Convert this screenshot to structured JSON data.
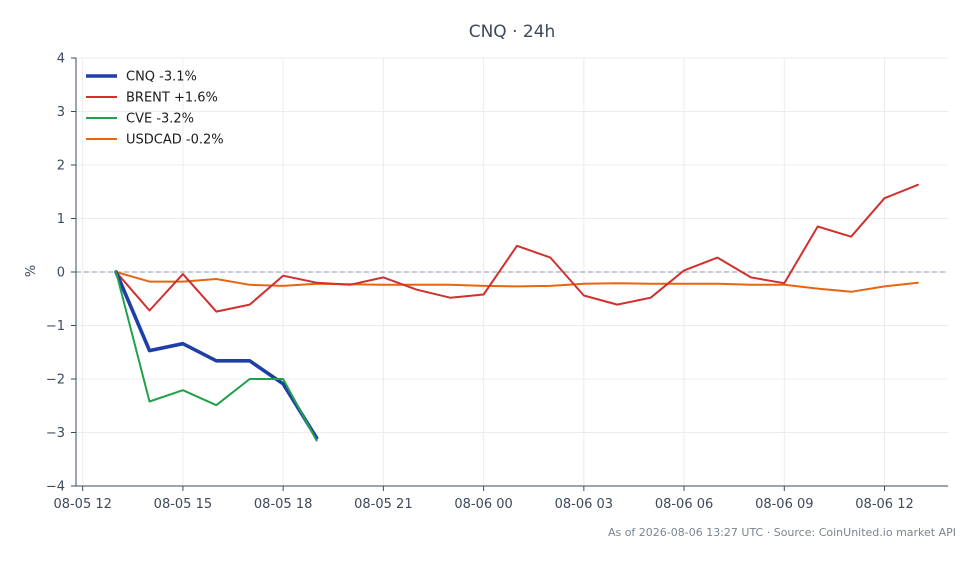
{
  "chart_data": {
    "type": "line",
    "title": "CNQ · 24h",
    "ylabel": "%",
    "xlabel": "",
    "ylim": [
      -4,
      4
    ],
    "yticks": [
      "4",
      "3",
      "2",
      "1",
      "0",
      "−1",
      "−2",
      "−3",
      "−4"
    ],
    "ytick_values": [
      4,
      3,
      2,
      1,
      0,
      -1,
      -2,
      -3,
      -4
    ],
    "xlim": [
      11.8,
      37.9
    ],
    "xticks": [
      "08-05 12",
      "08-05 15",
      "08-05 18",
      "08-05 21",
      "08-06 00",
      "08-06 03",
      "08-06 06",
      "08-06 09",
      "08-06 12"
    ],
    "xtick_values": [
      12,
      15,
      18,
      21,
      24,
      27,
      30,
      33,
      36
    ],
    "grid": true,
    "zero_line": true,
    "legend_position": "top-left",
    "series": [
      {
        "name": "CNQ -3.1%",
        "color": "#1f3fa6",
        "x": [
          13,
          14,
          15,
          16,
          17,
          18,
          19
        ],
        "values": [
          0.0,
          -1.47,
          -1.34,
          -1.66,
          -1.66,
          -2.09,
          -3.1
        ]
      },
      {
        "name": "BRENT +1.6%",
        "color": "#d0312d",
        "x": [
          13,
          14,
          15,
          16,
          17,
          18,
          19,
          20,
          21,
          22,
          23,
          24,
          25,
          26,
          27,
          28,
          29,
          30,
          31,
          32,
          33,
          34,
          35,
          36,
          37
        ],
        "values": [
          0.0,
          -0.72,
          -0.04,
          -0.74,
          -0.61,
          -0.07,
          -0.2,
          -0.24,
          -0.1,
          -0.33,
          -0.48,
          -0.42,
          0.49,
          0.27,
          -0.44,
          -0.61,
          -0.48,
          0.03,
          0.27,
          -0.1,
          -0.21,
          0.85,
          0.66,
          1.38,
          1.63
        ]
      },
      {
        "name": "CVE -3.2%",
        "color": "#22a04b",
        "x": [
          13,
          14,
          15,
          16,
          17,
          18,
          19
        ],
        "values": [
          0.0,
          -2.42,
          -2.21,
          -2.49,
          -2.0,
          -2.0,
          -3.15
        ]
      },
      {
        "name": "USDCAD -0.2%",
        "color": "#e8650f",
        "x": [
          13,
          14,
          15,
          16,
          17,
          18,
          19,
          20,
          21,
          22,
          23,
          24,
          25,
          26,
          27,
          28,
          29,
          30,
          31,
          32,
          33,
          34,
          35,
          36,
          37
        ],
        "values": [
          0.0,
          -0.18,
          -0.18,
          -0.13,
          -0.24,
          -0.26,
          -0.22,
          -0.23,
          -0.24,
          -0.24,
          -0.24,
          -0.26,
          -0.27,
          -0.26,
          -0.22,
          -0.21,
          -0.22,
          -0.22,
          -0.22,
          -0.24,
          -0.24,
          -0.31,
          -0.37,
          -0.27,
          -0.2
        ]
      }
    ]
  },
  "footer": "As of 2026-08-06 13:27 UTC · Source: CoinUnited.io market API"
}
